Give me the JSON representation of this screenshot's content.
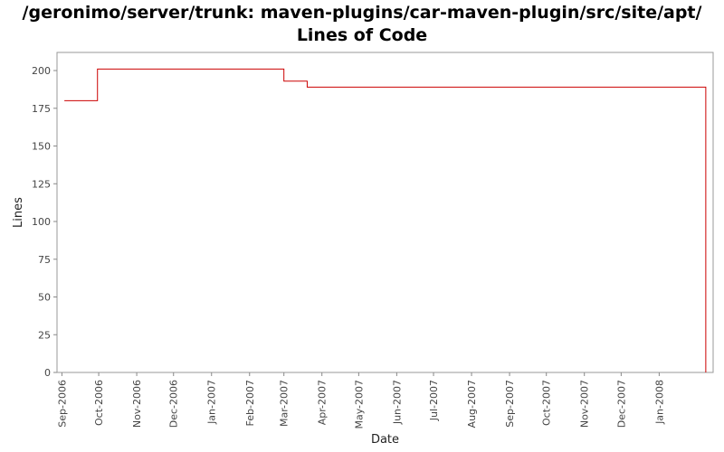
{
  "chart_data": {
    "type": "line",
    "title_lines": [
      "/geronimo/server/trunk: maven-plugins/car-maven-plugin/src/site/apt/",
      "Lines of Code"
    ],
    "xlabel": "Date",
    "ylabel": "Lines",
    "x_tick_labels": [
      "Sep-2006",
      "Oct-2006",
      "Nov-2006",
      "Dec-2006",
      "Jan-2007",
      "Feb-2007",
      "Mar-2007",
      "Apr-2007",
      "May-2007",
      "Jun-2007",
      "Jul-2007",
      "Aug-2007",
      "Sep-2007",
      "Oct-2007",
      "Nov-2007",
      "Dec-2007",
      "Jan-2008"
    ],
    "x_range": [
      "2006-08-28",
      "2008-02-14"
    ],
    "ylim": [
      0,
      212
    ],
    "y_ticks": [
      0,
      25,
      50,
      75,
      100,
      125,
      150,
      175,
      200
    ],
    "grid": false,
    "step": true,
    "series": [
      {
        "color": "#cc0000",
        "points": [
          {
            "date": "2006-09-03",
            "value": 180
          },
          {
            "date": "2006-09-30",
            "value": 201
          },
          {
            "date": "2007-03-01",
            "value": 193
          },
          {
            "date": "2007-03-20",
            "value": 189
          },
          {
            "date": "2008-02-08",
            "value": 0
          }
        ]
      }
    ]
  }
}
